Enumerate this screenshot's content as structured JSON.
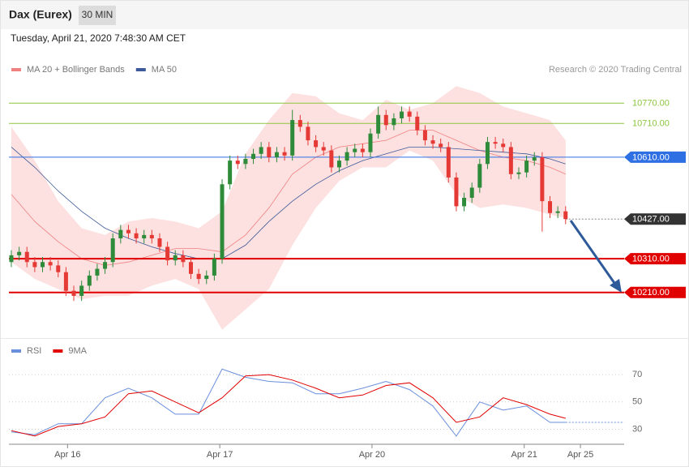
{
  "header": {
    "title": "Dax (Eurex)",
    "timeframe": "30 MIN"
  },
  "timestamp": "Tuesday, April 21, 2020 7:48:30 AM CET",
  "chart_data": [
    {
      "type": "candlestick",
      "source": "Research © 2020 Trading Central",
      "up_color": "#2e8b3a",
      "down_color": "#e53935",
      "x": [
        0,
        1,
        2,
        3,
        4,
        5,
        6,
        7,
        8,
        9,
        10,
        11,
        12,
        13,
        14,
        15,
        16,
        17,
        18,
        19,
        20,
        21,
        22,
        23,
        24,
        25,
        26,
        27,
        28,
        29,
        30,
        31,
        32,
        33,
        34,
        35,
        36,
        37,
        38,
        39,
        40,
        41,
        42,
        43,
        44,
        45,
        46,
        47,
        48,
        49,
        50,
        51,
        52,
        53,
        54,
        55,
        56,
        57,
        58,
        59,
        60,
        61,
        62,
        63,
        64,
        65,
        66,
        67,
        68,
        69,
        70,
        71
      ],
      "open": [
        10300,
        10320,
        10330,
        10300,
        10285,
        10300,
        10290,
        10270,
        10215,
        10200,
        10230,
        10260,
        10280,
        10300,
        10370,
        10395,
        10385,
        10370,
        10380,
        10370,
        10345,
        10305,
        10320,
        10300,
        10265,
        10250,
        10260,
        10310,
        10530,
        10600,
        10590,
        10605,
        10620,
        10640,
        10610,
        10625,
        10615,
        10720,
        10700,
        10660,
        10640,
        10630,
        10580,
        10600,
        10625,
        10635,
        10625,
        10680,
        10735,
        10705,
        10725,
        10745,
        10730,
        10690,
        10660,
        10650,
        10640,
        10550,
        10465,
        10490,
        10520,
        10590,
        10655,
        10650,
        10640,
        10560,
        10565,
        10600,
        10610,
        10480,
        10445,
        10450
      ],
      "high": [
        10335,
        10345,
        10345,
        10315,
        10315,
        10315,
        10305,
        10285,
        10230,
        10245,
        10275,
        10295,
        10315,
        10385,
        10410,
        10410,
        10400,
        10395,
        10395,
        10385,
        10360,
        10335,
        10335,
        10315,
        10280,
        10275,
        10325,
        10545,
        10615,
        10615,
        10620,
        10635,
        10655,
        10655,
        10640,
        10640,
        10750,
        10735,
        10715,
        10675,
        10655,
        10645,
        10615,
        10640,
        10650,
        10650,
        10695,
        10760,
        10750,
        10740,
        10760,
        10760,
        10745,
        10705,
        10675,
        10665,
        10655,
        10565,
        10505,
        10535,
        10605,
        10670,
        10670,
        10665,
        10655,
        10580,
        10615,
        10625,
        10625,
        10495,
        10465,
        10465
      ],
      "low": [
        10285,
        10305,
        10285,
        10270,
        10270,
        10275,
        10255,
        10200,
        10185,
        10185,
        10215,
        10245,
        10265,
        10285,
        10355,
        10370,
        10355,
        10355,
        10355,
        10330,
        10290,
        10290,
        10285,
        10250,
        10235,
        10235,
        10245,
        10295,
        10515,
        10575,
        10575,
        10590,
        10605,
        10595,
        10595,
        10600,
        10600,
        10685,
        10645,
        10625,
        10615,
        10565,
        10565,
        10585,
        10610,
        10610,
        10610,
        10665,
        10690,
        10690,
        10710,
        10715,
        10675,
        10645,
        10635,
        10625,
        10535,
        10450,
        10450,
        10475,
        10505,
        10575,
        10635,
        10625,
        10545,
        10545,
        10550,
        10585,
        10390,
        10430,
        10430,
        10412
      ],
      "close": [
        10320,
        10330,
        10300,
        10285,
        10300,
        10290,
        10270,
        10215,
        10200,
        10230,
        10260,
        10280,
        10300,
        10370,
        10395,
        10385,
        10370,
        10380,
        10370,
        10345,
        10305,
        10320,
        10300,
        10265,
        10250,
        10260,
        10310,
        10530,
        10600,
        10590,
        10605,
        10620,
        10640,
        10610,
        10625,
        10615,
        10720,
        10700,
        10660,
        10640,
        10630,
        10580,
        10600,
        10625,
        10635,
        10625,
        10680,
        10735,
        10705,
        10725,
        10745,
        10730,
        10690,
        10660,
        10650,
        10640,
        10550,
        10465,
        10490,
        10520,
        10590,
        10655,
        10650,
        10640,
        10560,
        10565,
        10600,
        10610,
        10480,
        10445,
        10450,
        10427
      ],
      "series": [
        {
          "name": "MA 20 + Bollinger Bands",
          "color": "#f08080",
          "band_color": "#fde0e0",
          "x": [
            0,
            3,
            6,
            9,
            12,
            15,
            18,
            21,
            24,
            27,
            30,
            33,
            36,
            39,
            42,
            45,
            48,
            51,
            54,
            57,
            60,
            63,
            66,
            69,
            71
          ],
          "values": [
            10500,
            10420,
            10360,
            10310,
            10290,
            10300,
            10320,
            10340,
            10340,
            10330,
            10380,
            10460,
            10560,
            10610,
            10640,
            10650,
            10660,
            10690,
            10690,
            10660,
            10630,
            10610,
            10600,
            10580,
            10560
          ],
          "upper": [
            10700,
            10600,
            10480,
            10400,
            10380,
            10420,
            10430,
            10420,
            10400,
            10450,
            10620,
            10720,
            10800,
            10790,
            10740,
            10720,
            10780,
            10750,
            10770,
            10820,
            10800,
            10760,
            10740,
            10720,
            10660
          ],
          "lower": [
            10300,
            10250,
            10220,
            10190,
            10200,
            10200,
            10230,
            10250,
            10220,
            10100,
            10160,
            10220,
            10350,
            10460,
            10540,
            10580,
            10580,
            10630,
            10600,
            10500,
            10460,
            10470,
            10460,
            10440,
            10430
          ]
        },
        {
          "name": "MA 50",
          "color": "#3c5a99",
          "x": [
            0,
            3,
            6,
            9,
            12,
            15,
            18,
            21,
            24,
            27,
            30,
            33,
            36,
            39,
            42,
            45,
            48,
            51,
            54,
            57,
            60,
            63,
            66,
            69,
            71
          ],
          "values": [
            10640,
            10580,
            10510,
            10450,
            10400,
            10370,
            10345,
            10325,
            10310,
            10310,
            10350,
            10420,
            10480,
            10530,
            10570,
            10600,
            10620,
            10640,
            10640,
            10635,
            10630,
            10625,
            10620,
            10605,
            10590
          ]
        }
      ],
      "levels": [
        {
          "value": 10770,
          "label": "10770.00",
          "color": "#8dc63f",
          "style": "text",
          "line": "solid"
        },
        {
          "value": 10710,
          "label": "10710.00",
          "color": "#8dc63f",
          "style": "text",
          "line": "solid"
        },
        {
          "value": 10610,
          "label": "10610.00",
          "color": "#2f6fe4",
          "style": "tag",
          "line": "solid"
        },
        {
          "value": 10427,
          "label": "10427.00",
          "color": "#333333",
          "style": "tag",
          "line": "dotted"
        },
        {
          "value": 10310,
          "label": "10310.00",
          "color": "#e00000",
          "style": "tag",
          "line": "thick"
        },
        {
          "value": 10210,
          "label": "10210.00",
          "color": "#e00000",
          "style": "tag",
          "line": "thick"
        }
      ],
      "xlim": [
        -0.31,
        78.5
      ],
      "ylim": [
        10080,
        10840
      ]
    },
    {
      "type": "line",
      "x": [
        0,
        3,
        6,
        9,
        12,
        15,
        18,
        21,
        24,
        27,
        30,
        33,
        36,
        39,
        42,
        45,
        48,
        51,
        54,
        57,
        60,
        63,
        66,
        69,
        71
      ],
      "series": [
        {
          "name": "RSI",
          "color": "#6a8fdc",
          "values": [
            28,
            26,
            34,
            34,
            53,
            60,
            53,
            41,
            41,
            74,
            68,
            65,
            64,
            56,
            56,
            60,
            65,
            59,
            47,
            25,
            50,
            44,
            47,
            35,
            35
          ]
        },
        {
          "name": "9MA",
          "color": "#e00000",
          "values": [
            29,
            25,
            32,
            34,
            39,
            56,
            58,
            50,
            42,
            53,
            69,
            70,
            66,
            60,
            53,
            55,
            62,
            64,
            53,
            35,
            39,
            53,
            48,
            41,
            38
          ]
        }
      ],
      "xlim": [
        -0.31,
        78.5
      ],
      "xticks": [
        {
          "value": 7.2,
          "label": "Apr 16"
        },
        {
          "value": 26.7,
          "label": "Apr 17"
        },
        {
          "value": 46.2,
          "label": "Apr 20"
        },
        {
          "value": 65.7,
          "label": "Apr 21"
        },
        {
          "value": 72.9,
          "label": "Apr 25"
        }
      ],
      "ylim": [
        19,
        92
      ],
      "yticks": [
        30,
        50,
        70
      ],
      "grid": true
    }
  ]
}
